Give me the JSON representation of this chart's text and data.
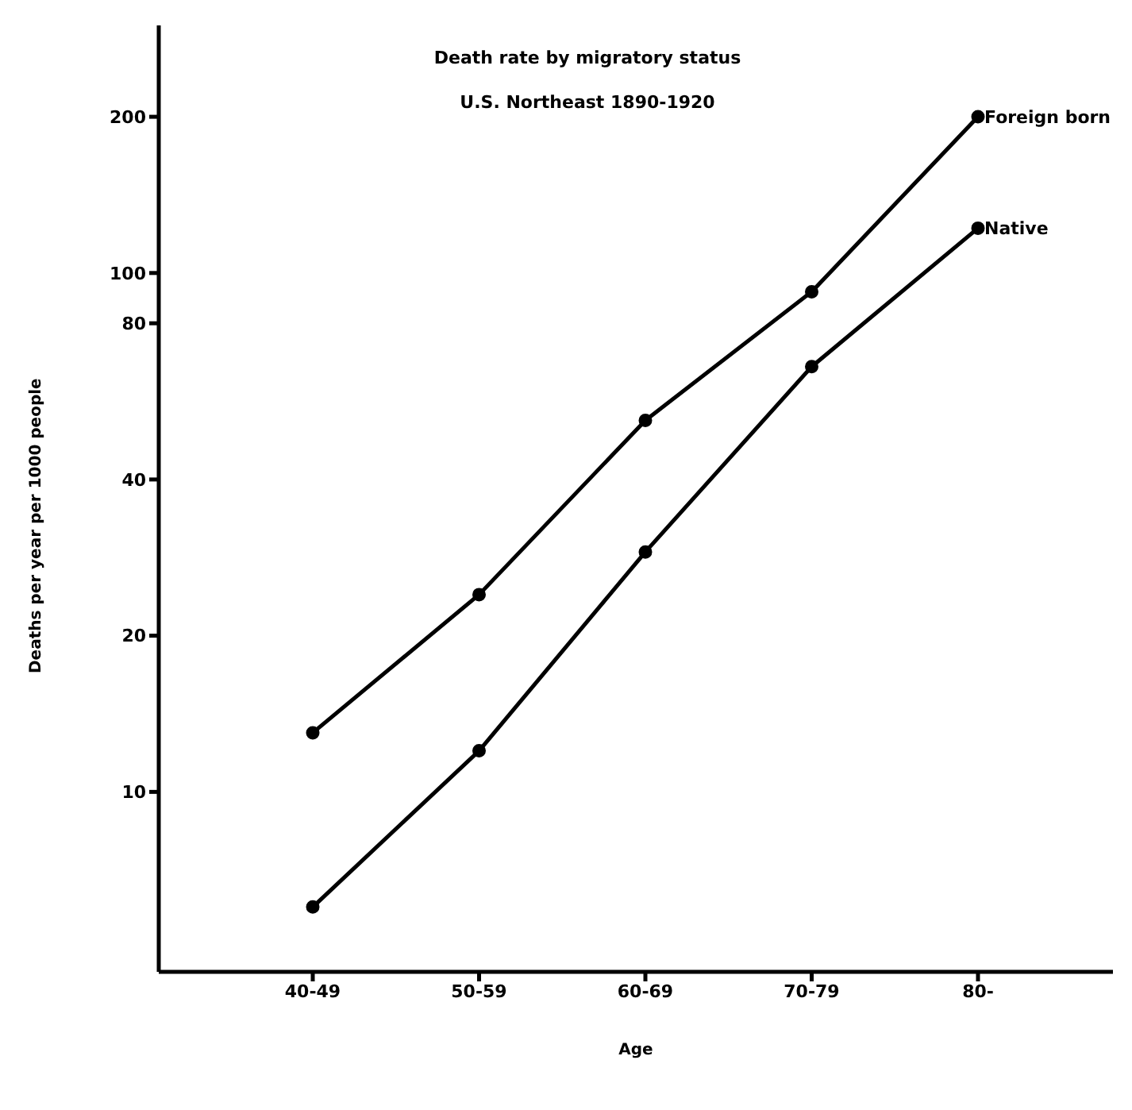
{
  "chart_data": {
    "type": "line",
    "title": "Death rate by migratory status",
    "subtitle": "U.S. Northeast  1890-1920",
    "xlabel": "Age",
    "ylabel": "Deaths per year per 1000 people",
    "categories": [
      "40-49",
      "50-59",
      "60-69",
      "70-79",
      "80-"
    ],
    "series": [
      {
        "name": "Foreign born",
        "color": "#000000",
        "values": [
          13,
          24,
          52,
          92,
          200
        ]
      },
      {
        "name": "Native",
        "color": "#000000",
        "values": [
          6,
          12,
          29,
          66,
          122
        ]
      }
    ],
    "log": true,
    "ylim": [
      4.5,
      300
    ],
    "yticks": [
      10,
      20,
      40,
      80,
      100,
      200
    ],
    "grid": false,
    "legend": false,
    "marker": "circle",
    "line_style": "solid"
  }
}
